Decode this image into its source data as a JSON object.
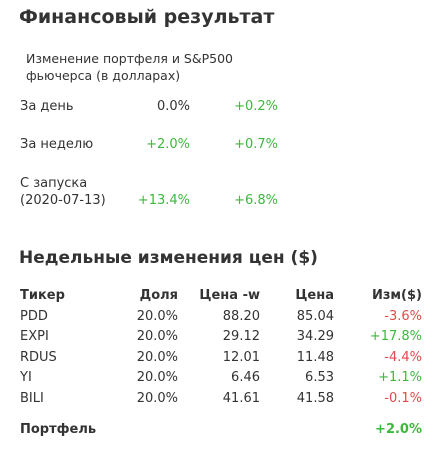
{
  "title": "Финансовый результат",
  "subtitle_line1": "Изменение портфеля и S&P500",
  "subtitle_line2": "фьючерса (в долларах)",
  "summary": [
    {
      "label1": "За день",
      "label2": "",
      "portfolio": "0.0%",
      "sp500": "+0.2%",
      "portfolio_color": "#333333",
      "sp500_color": "#3db83d"
    },
    {
      "label1": "За неделю",
      "label2": "",
      "portfolio": "+2.0%",
      "sp500": "+0.7%",
      "portfolio_color": "#3db83d",
      "sp500_color": "#3db83d"
    },
    {
      "label1": "С запуска",
      "label2": "(2020-07-13)",
      "portfolio": "+13.4%",
      "sp500": "+6.8%",
      "portfolio_color": "#3db83d",
      "sp500_color": "#3db83d"
    }
  ],
  "weekly_title": "Недельные изменения цен ($)",
  "table": {
    "headers": [
      "Тикер",
      "Доля",
      "Цена -w",
      "Цена",
      "Изм($)"
    ],
    "rows": [
      {
        "ticker": "PDD",
        "share": "20.0%",
        "price_w": "88.20",
        "price": "85.04",
        "change": "-3.6%",
        "change_color": "#e04a4a"
      },
      {
        "ticker": "EXPI",
        "share": "20.0%",
        "price_w": "29.12",
        "price": "34.29",
        "change": "+17.8%",
        "change_color": "#3db83d"
      },
      {
        "ticker": "RDUS",
        "share": "20.0%",
        "price_w": "12.01",
        "price": "11.48",
        "change": "-4.4%",
        "change_color": "#e04a4a"
      },
      {
        "ticker": "YI",
        "share": "20.0%",
        "price_w": "6.46",
        "price": "6.53",
        "change": "+1.1%",
        "change_color": "#3db83d"
      },
      {
        "ticker": "BILI",
        "share": "20.0%",
        "price_w": "41.61",
        "price": "41.58",
        "change": "-0.1%",
        "change_color": "#e04a4a"
      }
    ],
    "total_label": "Портфель",
    "total_change": "+2.0%",
    "total_color": "#3db83d"
  }
}
